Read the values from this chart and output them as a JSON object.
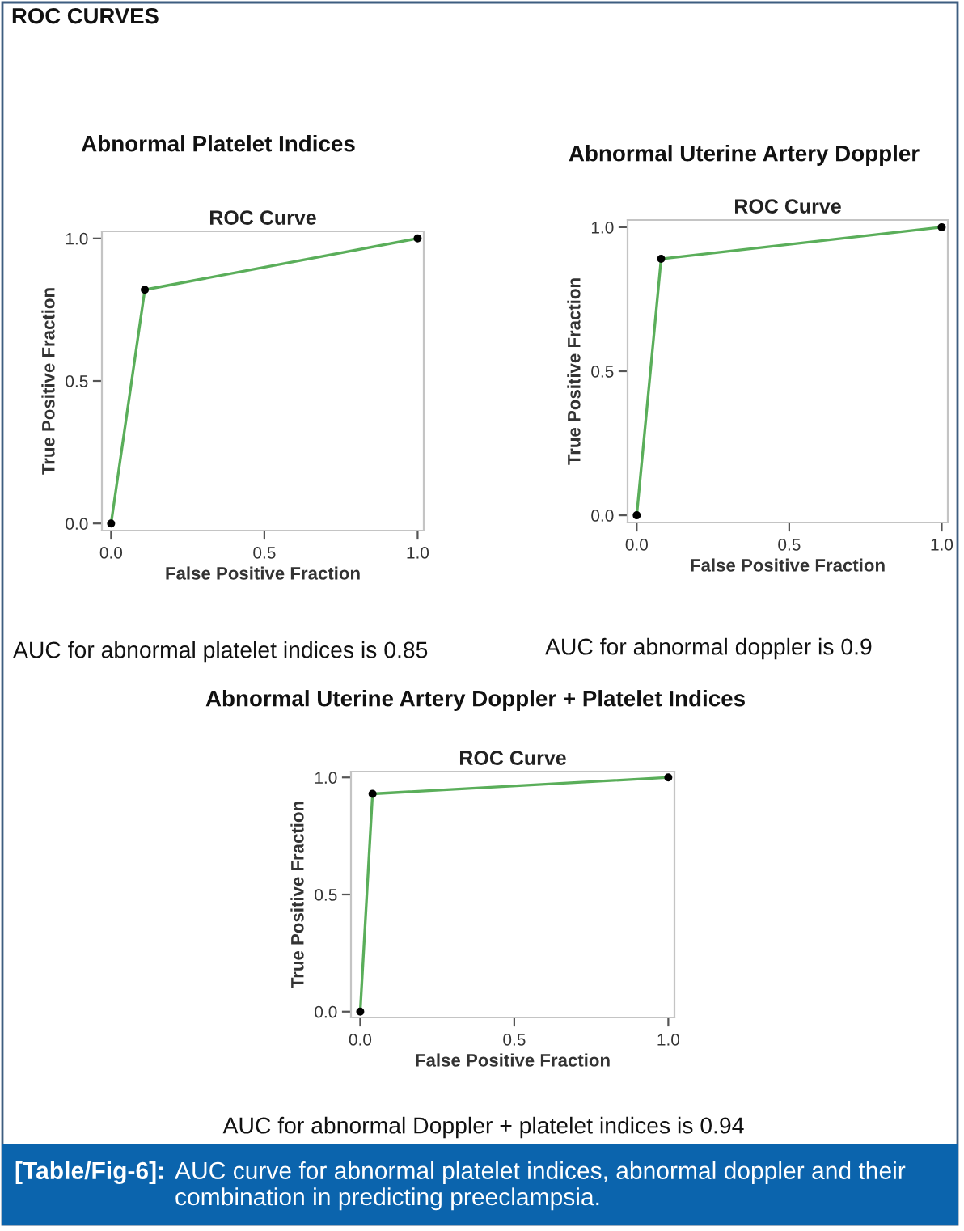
{
  "chart_data": [
    {
      "type": "line",
      "title": "Abnormal Platelet Indices",
      "subtitle": "ROC Curve",
      "xlabel": "False Positive Fraction",
      "ylabel": "True Positive Fraction",
      "x": [
        0,
        0.11,
        1
      ],
      "series": [
        {
          "color": "#5aae5a",
          "values": [
            0,
            0.82,
            1
          ]
        }
      ],
      "marker": "circle",
      "xlim": [
        -0.03,
        1.02
      ],
      "ylim": [
        -0.025,
        1.025
      ],
      "xticks": [
        {
          "value": 0,
          "label": "0.0"
        },
        {
          "value": 0.5,
          "label": "0.5"
        },
        {
          "value": 1,
          "label": "1.0"
        }
      ],
      "yticks": [
        {
          "value": 0,
          "label": "0.0"
        },
        {
          "value": 0.5,
          "label": "0.5"
        },
        {
          "value": 1,
          "label": "1.0"
        }
      ],
      "annotations": [
        "ROC CURVES",
        "AUC for abnormal platelet indices is 0.85"
      ]
    },
    {
      "type": "line",
      "title": "Abnormal Uterine Artery Doppler",
      "subtitle": "ROC Curve",
      "xlabel": "False Positive Fraction",
      "ylabel": "True Positive Fraction",
      "x": [
        0,
        0.08,
        1
      ],
      "series": [
        {
          "color": "#5aae5a",
          "values": [
            0,
            0.89,
            1
          ]
        }
      ],
      "marker": "circle",
      "xlim": [
        -0.03,
        1.02
      ],
      "ylim": [
        -0.025,
        1.025
      ],
      "xticks": [
        {
          "value": 0,
          "label": "0.0"
        },
        {
          "value": 0.5,
          "label": "0.5"
        },
        {
          "value": 1,
          "label": "1.0"
        }
      ],
      "yticks": [
        {
          "value": 0,
          "label": "0.0"
        },
        {
          "value": 0.5,
          "label": "0.5"
        },
        {
          "value": 1,
          "label": "1.0"
        }
      ],
      "annotations": [
        "AUC for abnormal doppler is 0.9"
      ]
    },
    {
      "type": "line",
      "title": "Abnormal Uterine Artery Doppler + Platelet Indices",
      "subtitle": "ROC Curve",
      "xlabel": "False Positive Fraction",
      "ylabel": "True Positive Fraction",
      "x": [
        0,
        0.04,
        1
      ],
      "series": [
        {
          "color": "#5aae5a",
          "values": [
            0,
            0.93,
            1
          ]
        }
      ],
      "marker": "circle",
      "xlim": [
        -0.03,
        1.02
      ],
      "ylim": [
        -0.025,
        1.025
      ],
      "xticks": [
        {
          "value": 0,
          "label": "0.0"
        },
        {
          "value": 0.5,
          "label": "0.5"
        },
        {
          "value": 1,
          "label": "1.0"
        }
      ],
      "yticks": [
        {
          "value": 0,
          "label": "0.0"
        },
        {
          "value": 0.5,
          "label": "0.5"
        },
        {
          "value": 1,
          "label": "1.0"
        }
      ],
      "annotations": [
        "AUC for abnormal Doppler + platelet indices is 0.94",
        "[Table/Fig-6]:",
        "AUC curve for abnormal platelet indices, abnormal doppler and their combination in predicting preeclampsia."
      ]
    }
  ]
}
